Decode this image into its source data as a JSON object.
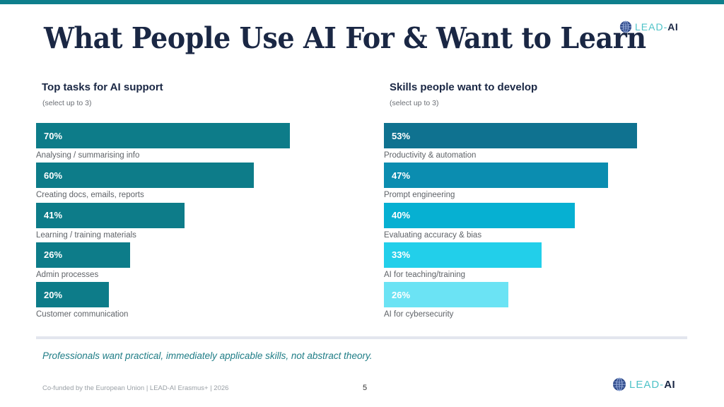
{
  "slide": {
    "title": "What People Use AI For & Want to Learn",
    "logo": {
      "text_main": "LEAD-",
      "text_accent": "AI",
      "icon": "globe-icon"
    },
    "takeaway": "Professionals want practical, immediately applicable skills, not abstract theory.",
    "footer": "Co-funded by the European Union  |  LEAD-AI Erasmus+  |  2026",
    "page_number": "5",
    "colors": {
      "top_bar": "#0e7f8c",
      "title": "#1a2744",
      "takeaway": "#1f7d86"
    }
  },
  "chart_data": [
    {
      "type": "bar",
      "orientation": "horizontal",
      "title": "Top tasks for AI support",
      "subtitle": "(select up to 3)",
      "categories": [
        "Analysing / summarising info",
        "Creating docs, emails, reports",
        "Learning / training materials",
        "Admin processes",
        "Customer communication"
      ],
      "values": [
        70,
        60,
        41,
        26,
        20
      ],
      "value_labels": [
        "70%",
        "60%",
        "41%",
        "26%",
        "20%"
      ],
      "unit": "%",
      "colors": [
        "#0d7c89",
        "#0d7c89",
        "#0d7c89",
        "#0d7c89",
        "#0d7c89"
      ],
      "xlabel": "",
      "ylabel": "",
      "xlim": [
        0,
        70
      ],
      "grid": false,
      "legend": "none"
    },
    {
      "type": "bar",
      "orientation": "horizontal",
      "title": "Skills people want to develop",
      "subtitle": "(select up to 3)",
      "categories": [
        "Productivity & automation",
        "Prompt engineering",
        "Evaluating accuracy & bias",
        "AI for teaching/training",
        "AI for cybersecurity"
      ],
      "values": [
        53,
        47,
        40,
        33,
        26
      ],
      "value_labels": [
        "53%",
        "47%",
        "40%",
        "33%",
        "26%"
      ],
      "unit": "%",
      "colors": [
        "#0f7290",
        "#0b8db0",
        "#06b0d2",
        "#22cfea",
        "#6be3f4"
      ],
      "xlabel": "",
      "ylabel": "",
      "xlim": [
        0,
        53
      ],
      "grid": false,
      "legend": "none"
    }
  ]
}
